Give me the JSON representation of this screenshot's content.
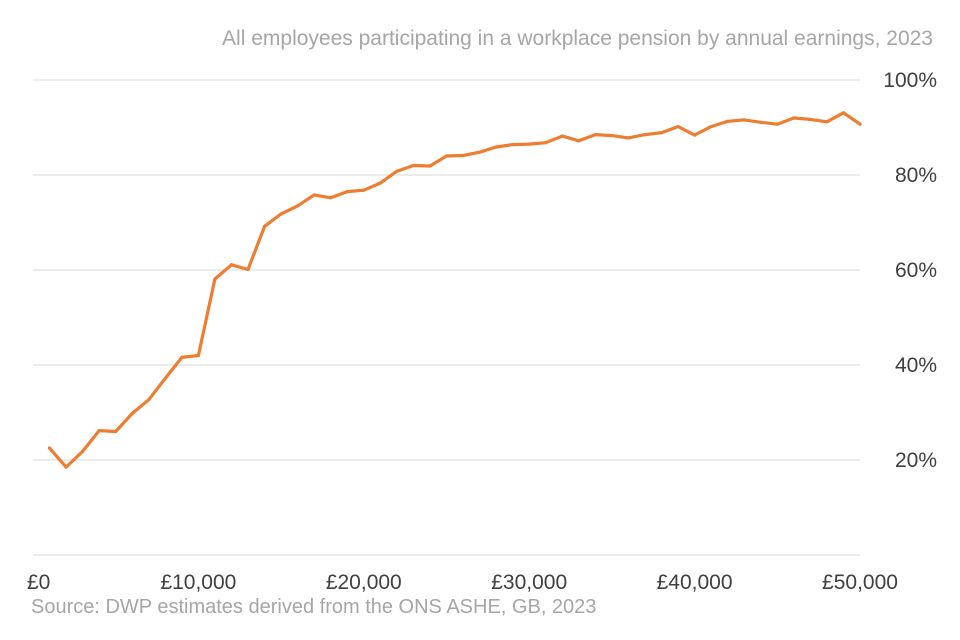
{
  "chart_data": {
    "type": "line",
    "title": "All employees participating in a workplace pension by annual earnings, 2023",
    "source": "Source: DWP estimates derived from the ONS ASHE, GB, 2023",
    "xlabel": "",
    "ylabel": "",
    "xlim": [
      0,
      50000
    ],
    "ylim": [
      0,
      100
    ],
    "grid": true,
    "x_ticks": [
      0,
      10000,
      20000,
      30000,
      40000,
      50000
    ],
    "x_tick_labels": [
      "£0",
      "£10,000",
      "£20,000",
      "£30,000",
      "£40,000",
      "£50,000"
    ],
    "y_ticks": [
      20,
      40,
      60,
      80,
      100
    ],
    "y_tick_labels": [
      "20%",
      "40%",
      "60%",
      "80%",
      "100%"
    ],
    "color": "#ed7d31",
    "series": [
      {
        "x": [
          1000,
          2000,
          3000,
          4000,
          5000,
          6000,
          7000,
          8000,
          9000,
          10000,
          11000,
          12000,
          13000,
          14000,
          15000,
          16000,
          17000,
          18000,
          19000,
          20000,
          21000,
          22000,
          23000,
          24000,
          25000,
          26000,
          27000,
          28000,
          29000,
          30000,
          31000,
          32000,
          33000,
          34000,
          35000,
          36000,
          37000,
          38000,
          39000,
          40000,
          41000,
          42000,
          43000,
          44000,
          45000,
          46000,
          47000,
          48000,
          49000,
          50000
        ],
        "y": [
          22.5,
          18.5,
          21.8,
          26.2,
          26.0,
          29.8,
          32.7,
          37.2,
          41.6,
          42.0,
          58.1,
          61.1,
          60.1,
          69.2,
          71.8,
          73.5,
          75.8,
          75.2,
          76.5,
          76.8,
          78.3,
          80.8,
          82.0,
          81.9,
          84.0,
          84.1,
          84.8,
          85.9,
          86.4,
          86.5,
          86.8,
          88.2,
          87.2,
          88.5,
          88.3,
          87.8,
          88.5,
          88.9,
          90.2,
          88.4,
          90.2,
          91.3,
          91.6,
          91.1,
          90.7,
          92.0,
          91.7,
          91.2,
          93.1,
          90.7
        ]
      }
    ]
  }
}
